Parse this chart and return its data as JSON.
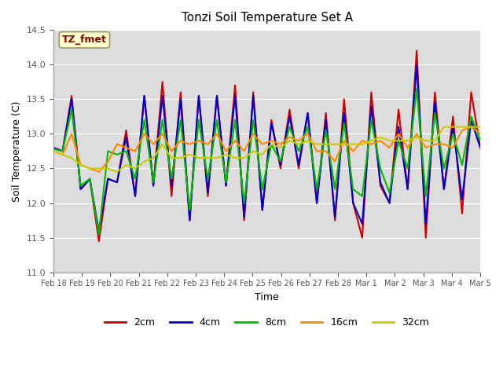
{
  "title": "Tonzi Soil Temperature Set A",
  "ylabel": "Soil Temperature (C)",
  "xlabel": "Time",
  "annotation": "TZ_fmet",
  "ylim": [
    11.0,
    14.5
  ],
  "bg_color": "#dcdcdc",
  "fig_color": "#ffffff",
  "series": {
    "2cm": {
      "color": "#cc0000",
      "lw": 1.5
    },
    "4cm": {
      "color": "#0000cc",
      "lw": 1.5
    },
    "8cm": {
      "color": "#00bb00",
      "lw": 1.5
    },
    "16cm": {
      "color": "#ff8800",
      "lw": 1.5
    },
    "32cm": {
      "color": "#cccc00",
      "lw": 1.5
    }
  },
  "xtick_labels": [
    "Feb 18",
    "Feb 19",
    "Feb 20",
    "Feb 21",
    "Feb 22",
    "Feb 23",
    "Feb 24",
    "Feb 25",
    "Feb 26",
    "Feb 27",
    "Feb 28",
    "Mar 1",
    "Mar 2",
    "Mar 3",
    "Mar 4",
    "Mar 5"
  ],
  "n_ticks": 16,
  "data_2cm": [
    12.8,
    12.75,
    13.55,
    12.2,
    12.35,
    11.45,
    12.35,
    12.3,
    13.05,
    12.1,
    13.55,
    12.25,
    13.75,
    12.1,
    13.6,
    11.75,
    13.55,
    12.1,
    13.55,
    12.25,
    13.7,
    11.75,
    13.6,
    11.9,
    13.2,
    12.5,
    13.35,
    12.5,
    13.3,
    12.0,
    13.3,
    11.75,
    13.5,
    12.0,
    11.5,
    13.6,
    12.25,
    12.0,
    13.35,
    12.2,
    14.2,
    11.5,
    13.6,
    12.2,
    13.25,
    11.85,
    13.6,
    12.8
  ],
  "data_4cm": [
    12.8,
    12.75,
    13.5,
    12.2,
    12.35,
    11.6,
    12.35,
    12.3,
    12.95,
    12.1,
    13.55,
    12.25,
    13.55,
    12.25,
    13.5,
    11.75,
    13.55,
    12.15,
    13.55,
    12.25,
    13.55,
    11.8,
    13.55,
    11.9,
    13.15,
    12.55,
    13.25,
    12.55,
    13.3,
    12.0,
    13.2,
    11.8,
    13.3,
    12.0,
    11.7,
    13.4,
    12.3,
    12.0,
    13.1,
    12.2,
    14.0,
    11.7,
    13.45,
    12.2,
    13.1,
    12.05,
    13.2,
    12.8
  ],
  "data_8cm": [
    12.78,
    12.75,
    13.35,
    12.25,
    12.35,
    11.55,
    12.75,
    12.7,
    12.75,
    12.35,
    13.2,
    12.3,
    13.2,
    12.35,
    13.2,
    11.9,
    13.2,
    12.35,
    13.2,
    12.3,
    13.2,
    12.0,
    13.2,
    12.2,
    12.85,
    12.6,
    13.1,
    12.75,
    13.1,
    12.2,
    13.05,
    12.2,
    13.15,
    12.2,
    12.1,
    13.2,
    12.5,
    12.15,
    12.9,
    12.5,
    13.65,
    12.1,
    13.3,
    12.5,
    13.0,
    12.55,
    13.25,
    12.9
  ],
  "data_16cm": [
    12.75,
    12.7,
    13.0,
    12.55,
    12.5,
    12.45,
    12.6,
    12.85,
    12.8,
    12.75,
    13.0,
    12.85,
    13.0,
    12.75,
    12.9,
    12.85,
    12.9,
    12.85,
    13.0,
    12.75,
    12.9,
    12.75,
    13.0,
    12.85,
    12.9,
    12.85,
    12.95,
    12.9,
    13.0,
    12.75,
    12.75,
    12.6,
    12.9,
    12.75,
    12.9,
    12.85,
    12.9,
    12.8,
    13.0,
    12.8,
    13.0,
    12.8,
    12.85,
    12.85,
    12.8,
    13.05,
    13.1,
    13.0
  ],
  "data_32cm": [
    12.75,
    12.7,
    12.65,
    12.55,
    12.5,
    12.5,
    12.5,
    12.45,
    12.55,
    12.5,
    12.6,
    12.65,
    12.85,
    12.65,
    12.65,
    12.7,
    12.65,
    12.65,
    12.65,
    12.7,
    12.65,
    12.65,
    12.75,
    12.7,
    12.85,
    12.8,
    12.9,
    12.85,
    12.9,
    12.85,
    12.85,
    12.85,
    12.85,
    12.85,
    12.85,
    12.9,
    12.95,
    12.9,
    12.9,
    12.9,
    12.95,
    12.9,
    12.9,
    13.1,
    13.1,
    13.1,
    13.1,
    13.1
  ]
}
